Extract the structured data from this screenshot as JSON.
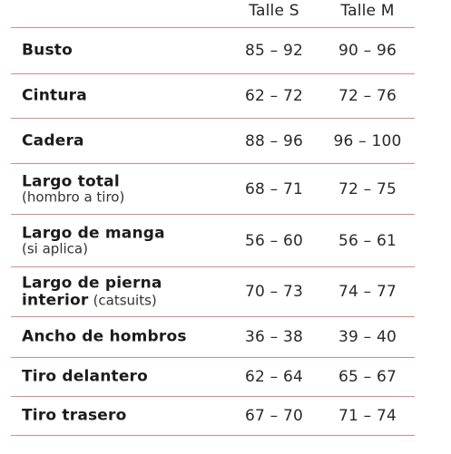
{
  "header": {
    "col_s": "Talle S",
    "col_m": "Talle M"
  },
  "rows": [
    {
      "label": "Busto",
      "s": "85 – 92",
      "m": "90 – 96"
    },
    {
      "label": "Cintura",
      "s": "62 – 72",
      "m": "72 – 76"
    },
    {
      "label": "Cadera",
      "s": "88 – 96",
      "m": "96 – 100"
    },
    {
      "label": "Largo total",
      "sub": "(hombro a tiro)",
      "s": "68 – 71",
      "m": "72 – 75"
    },
    {
      "label": "Largo de manga",
      "sub": "(si aplica)",
      "s": "56 – 60",
      "m": "56 – 61"
    },
    {
      "label": "Largo de pierna",
      "label2": "interior",
      "sub": "(catsuits)",
      "s": "70 – 73",
      "m": "74 – 77"
    },
    {
      "label": "Ancho de hombros",
      "s": "36 – 38",
      "m": "39 – 40"
    },
    {
      "label": "Tiro delantero",
      "s": "62 – 64",
      "m": "65 – 67"
    },
    {
      "label": "Tiro trasero",
      "s": "67 – 70",
      "m": "71 – 74"
    }
  ],
  "colors": {
    "divider": "#d98a8a",
    "text": "#1f1f1f"
  }
}
